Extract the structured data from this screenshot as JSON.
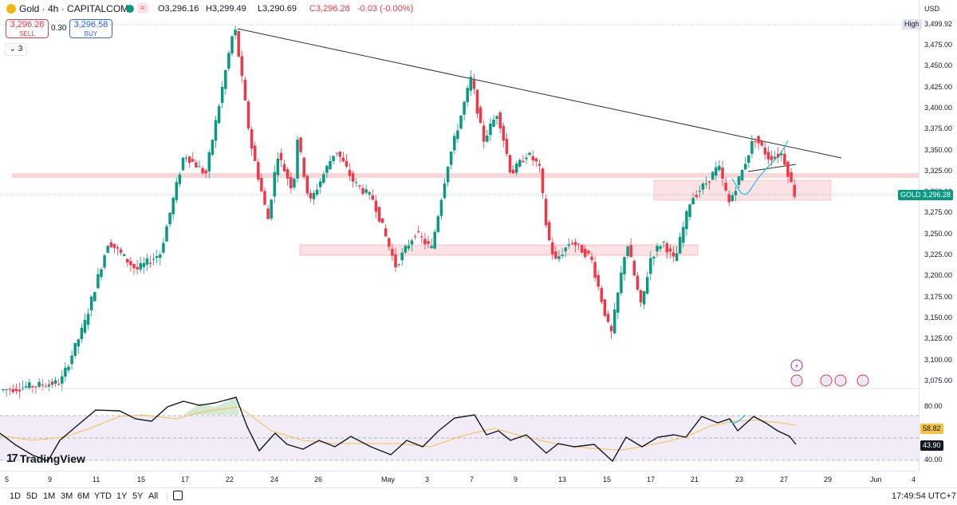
{
  "header": {
    "symbol": "Gold · 4h · CAPITALCOM",
    "ohlc": {
      "o": "O3,296.16",
      "h": "H3,299.49",
      "l": "L3,290.69",
      "c": "C3,296.28",
      "chg": "-0.03 (-0.00%)"
    }
  },
  "trade": {
    "sell_price": "3,296.28",
    "sell_label": "SELL",
    "spread": "0.30",
    "buy_price": "3,296.58",
    "buy_label": "BUY"
  },
  "indicator_toggle": "3",
  "price_axis": {
    "currency": "USD",
    "high_label": "High",
    "high_value": "3,499.92",
    "ticks": [
      "3,475.00",
      "3,450.00",
      "3,425.00",
      "3,400.00",
      "3,375.00",
      "3,350.00",
      "3,325.00",
      "3,300.00",
      "3,275.00",
      "3,250.00",
      "3,225.00",
      "3,200.00",
      "3,175.00",
      "3,150.00",
      "3,125.00",
      "3,100.00",
      "3,075.00"
    ],
    "last_label": "GOLD",
    "last_value": "3,296.28"
  },
  "rsi_axis": {
    "ticks": [
      "80.00",
      "40.00"
    ],
    "ma_value": "58.82",
    "rsi_value": "43.90"
  },
  "time_axis": {
    "ticks": [
      "5",
      "9",
      "11",
      "15",
      "17",
      "22",
      "24",
      "26",
      "May",
      "3",
      "7",
      "9",
      "13",
      "15",
      "17",
      "21",
      "23",
      "27",
      "29",
      "Jun",
      "4"
    ]
  },
  "branding": "TradingView",
  "bottom_bar": {
    "timeframes": [
      "1D",
      "5D",
      "1M",
      "3M",
      "6M",
      "YTD",
      "1Y",
      "5Y",
      "All"
    ],
    "clock": "17:49:54 UTC+7"
  },
  "colors": {
    "up": "#089981",
    "down": "#f23645",
    "zone": "#f7c5c8",
    "rsi_band": "#ede7f6",
    "rsi_ma": "#f5c242",
    "accent": "#2962ff",
    "cyan": "#26c6da"
  },
  "chart_data": {
    "type": "candlestick",
    "symbol": "Gold",
    "timeframe": "4h",
    "ylim": [
      3060,
      3510
    ],
    "x_ticks": [
      "5",
      "9",
      "11",
      "15",
      "17",
      "22",
      "24",
      "26",
      "May",
      "3",
      "7",
      "9",
      "13",
      "15",
      "17",
      "21",
      "23",
      "27",
      "29",
      "Jun",
      "4"
    ],
    "swing_points": [
      {
        "x": "Apr 22",
        "price": 3499.92
      },
      {
        "x": "Apr 24",
        "price": 3265
      },
      {
        "x": "Apr 25",
        "price": 3370
      },
      {
        "x": "May 1",
        "price": 3205
      },
      {
        "x": "May 7",
        "price": 3437
      },
      {
        "x": "May 12",
        "price": 3250
      },
      {
        "x": "May 15",
        "price": 3120
      },
      {
        "x": "May 16",
        "price": 3240
      },
      {
        "x": "May 19",
        "price": 3160
      },
      {
        "x": "May 21",
        "price": 3300
      },
      {
        "x": "May 23",
        "price": 3365
      },
      {
        "x": "May 26",
        "price": 3296.28
      }
    ],
    "trendline": {
      "from": {
        "x": "Apr 22",
        "price": 3499.92
      },
      "to": {
        "x": "May 29",
        "price": 3343
      }
    },
    "zones": [
      {
        "from": 3316,
        "to": 3322,
        "x_range": [
          "Apr 4",
          "Jun 4"
        ]
      },
      {
        "from": 3290,
        "to": 3315,
        "x_range": [
          "May 21",
          "May 29"
        ]
      },
      {
        "from": 3226,
        "to": 3238,
        "x_range": [
          "Apr 24",
          "May 21"
        ]
      }
    ],
    "rsi": {
      "upper": 80,
      "lower": 40,
      "ma": 58.82,
      "value": 43.9
    }
  }
}
